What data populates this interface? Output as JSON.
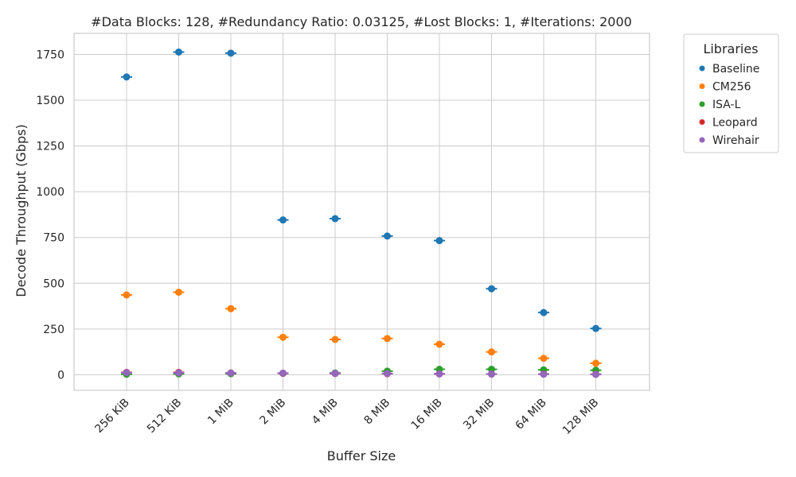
{
  "chart_data": {
    "type": "scatter",
    "title": "#Data Blocks: 128, #Redundancy Ratio: 0.03125, #Lost Blocks: 1, #Iterations: 2000",
    "xlabel": "Buffer Size",
    "ylabel": "Decode Throughput (Gbps)",
    "categories": [
      "256 KiB",
      "512 KiB",
      "1 MiB",
      "2 MiB",
      "4 MiB",
      "8 MiB",
      "16 MiB",
      "32 MiB",
      "64 MiB",
      "128 MiB"
    ],
    "ylim": [
      -85,
      1865
    ],
    "yticks": [
      0,
      250,
      500,
      750,
      1000,
      1250,
      1500,
      1750
    ],
    "grid": true,
    "legend": {
      "title": "Libraries",
      "placement": "outside-right-top"
    },
    "series": [
      {
        "name": "Baseline",
        "color": "#1f77b4",
        "values": [
          1627,
          1763,
          1757,
          846,
          853,
          758,
          733,
          470,
          340,
          253
        ]
      },
      {
        "name": "CM256",
        "color": "#ff7f0e",
        "values": [
          436,
          451,
          361,
          205,
          193,
          198,
          167,
          125,
          90,
          63
        ]
      },
      {
        "name": "ISA-L",
        "color": "#2ca02c",
        "values": [
          3,
          5,
          6,
          8,
          10,
          20,
          30,
          30,
          27,
          25
        ]
      },
      {
        "name": "Leopard",
        "color": "#d62728",
        "values": [
          13,
          13,
          10,
          8,
          7,
          6,
          5,
          4,
          4,
          3
        ]
      },
      {
        "name": "Wirehair",
        "color": "#9467bd",
        "values": [
          12,
          11,
          10,
          9,
          8,
          7,
          5,
          4,
          3,
          2
        ]
      }
    ]
  }
}
